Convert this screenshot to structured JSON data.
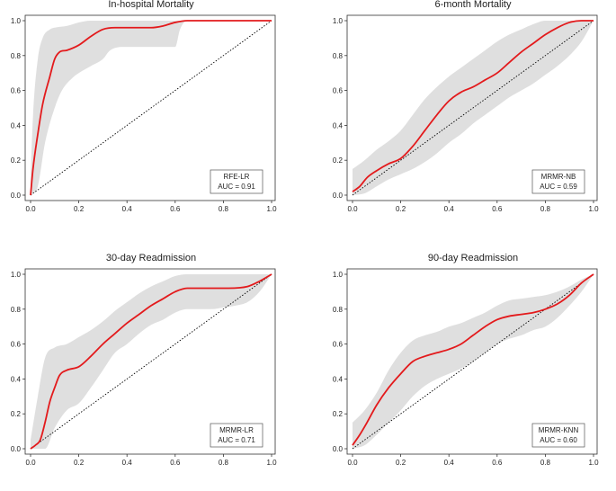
{
  "colors": {
    "curve": "#e31a1c",
    "band": "#d9d9d9",
    "axis": "#333333",
    "diagonal": "#000000"
  },
  "chart_data": [
    {
      "type": "line",
      "title": "In-hospital Mortality",
      "xlim": [
        0,
        1
      ],
      "ylim": [
        0,
        1
      ],
      "xticks": [
        "0.0",
        "0.2",
        "0.4",
        "0.6",
        "0.8",
        "1.0"
      ],
      "yticks": [
        "0.0",
        "0.2",
        "0.4",
        "0.6",
        "0.8",
        "1.0"
      ],
      "legend": {
        "model": "RFE-LR",
        "auc": "AUC = 0.91",
        "position": "lower-right"
      },
      "series": [
        {
          "name": "mean ROC",
          "x": [
            0,
            0.01,
            0.03,
            0.05,
            0.08,
            0.1,
            0.12,
            0.15,
            0.2,
            0.25,
            0.3,
            0.35,
            0.4,
            0.5,
            0.55,
            0.6,
            0.65,
            0.7,
            0.8,
            0.9,
            1.0
          ],
          "y": [
            0,
            0.15,
            0.35,
            0.52,
            0.68,
            0.78,
            0.82,
            0.83,
            0.86,
            0.91,
            0.95,
            0.96,
            0.96,
            0.96,
            0.97,
            0.99,
            1.0,
            1.0,
            1.0,
            1.0,
            1.0
          ]
        },
        {
          "name": "upper band",
          "x": [
            0,
            0.01,
            0.03,
            0.05,
            0.08,
            0.1,
            0.15,
            0.2,
            0.25,
            0.3,
            0.6,
            0.65,
            1.0
          ],
          "y": [
            0.1,
            0.45,
            0.78,
            0.9,
            0.95,
            0.96,
            0.97,
            0.99,
            1.0,
            1.0,
            1.0,
            1.0,
            1.0
          ]
        },
        {
          "name": "lower band",
          "x": [
            0,
            0.03,
            0.06,
            0.1,
            0.13,
            0.18,
            0.2,
            0.25,
            0.3,
            0.33,
            0.4,
            0.6,
            0.62,
            0.65,
            1.0
          ],
          "y": [
            0,
            0.05,
            0.3,
            0.5,
            0.6,
            0.68,
            0.7,
            0.74,
            0.78,
            0.83,
            0.85,
            0.85,
            0.95,
            1.0,
            1.0
          ]
        },
        {
          "name": "chance",
          "x": [
            0,
            1
          ],
          "y": [
            0,
            1
          ]
        }
      ]
    },
    {
      "type": "line",
      "title": "6-month Mortality",
      "xlim": [
        0,
        1
      ],
      "ylim": [
        0,
        1
      ],
      "xticks": [
        "0.0",
        "0.2",
        "0.4",
        "0.6",
        "0.8",
        "1.0"
      ],
      "yticks": [
        "0.0",
        "0.2",
        "0.4",
        "0.6",
        "0.8",
        "1.0"
      ],
      "legend": {
        "model": "MRMR-NB",
        "auc": "AUC = 0.59",
        "position": "lower-right"
      },
      "series": [
        {
          "name": "mean ROC",
          "x": [
            0,
            0.03,
            0.06,
            0.1,
            0.15,
            0.2,
            0.25,
            0.3,
            0.35,
            0.4,
            0.45,
            0.5,
            0.55,
            0.6,
            0.65,
            0.7,
            0.75,
            0.8,
            0.85,
            0.9,
            0.95,
            1.0
          ],
          "y": [
            0.02,
            0.05,
            0.1,
            0.14,
            0.18,
            0.21,
            0.28,
            0.37,
            0.46,
            0.54,
            0.59,
            0.62,
            0.66,
            0.7,
            0.76,
            0.82,
            0.87,
            0.92,
            0.96,
            0.99,
            1.0,
            1.0
          ]
        },
        {
          "name": "upper band",
          "x": [
            0,
            0.05,
            0.1,
            0.15,
            0.2,
            0.25,
            0.3,
            0.35,
            0.4,
            0.45,
            0.5,
            0.55,
            0.6,
            0.65,
            0.7,
            0.75,
            0.8,
            0.85,
            0.9,
            1.0
          ],
          "y": [
            0.15,
            0.2,
            0.26,
            0.31,
            0.37,
            0.46,
            0.55,
            0.62,
            0.68,
            0.73,
            0.78,
            0.83,
            0.88,
            0.92,
            0.95,
            0.98,
            1.0,
            1.0,
            1.0,
            1.0
          ]
        },
        {
          "name": "lower band",
          "x": [
            0,
            0.05,
            0.1,
            0.15,
            0.2,
            0.25,
            0.3,
            0.35,
            0.4,
            0.45,
            0.5,
            0.55,
            0.6,
            0.65,
            0.7,
            0.75,
            0.8,
            0.85,
            0.9,
            0.95,
            1.0
          ],
          "y": [
            0,
            0.01,
            0.05,
            0.09,
            0.12,
            0.15,
            0.19,
            0.24,
            0.3,
            0.35,
            0.41,
            0.46,
            0.51,
            0.56,
            0.6,
            0.64,
            0.69,
            0.74,
            0.8,
            0.88,
            1.0
          ]
        },
        {
          "name": "chance",
          "x": [
            0,
            1
          ],
          "y": [
            0,
            1
          ]
        }
      ]
    },
    {
      "type": "line",
      "title": "30-day Readmission",
      "xlim": [
        0,
        1
      ],
      "ylim": [
        0,
        1
      ],
      "xticks": [
        "0.0",
        "0.2",
        "0.4",
        "0.6",
        "0.8",
        "1.0"
      ],
      "yticks": [
        "0.0",
        "0.2",
        "0.4",
        "0.6",
        "0.8",
        "1.0"
      ],
      "legend": {
        "model": "MRMR-LR",
        "auc": "AUC = 0.71",
        "position": "lower-right"
      },
      "series": [
        {
          "name": "mean ROC",
          "x": [
            0,
            0.02,
            0.04,
            0.06,
            0.08,
            0.1,
            0.12,
            0.15,
            0.2,
            0.25,
            0.3,
            0.35,
            0.4,
            0.45,
            0.5,
            0.55,
            0.6,
            0.65,
            0.7,
            0.8,
            0.9,
            0.95,
            1.0
          ],
          "y": [
            0,
            0.02,
            0.05,
            0.15,
            0.27,
            0.35,
            0.42,
            0.45,
            0.47,
            0.53,
            0.6,
            0.66,
            0.72,
            0.77,
            0.82,
            0.86,
            0.9,
            0.92,
            0.92,
            0.92,
            0.93,
            0.96,
            1.0
          ]
        },
        {
          "name": "upper band",
          "x": [
            0,
            0.03,
            0.06,
            0.1,
            0.15,
            0.2,
            0.25,
            0.3,
            0.35,
            0.4,
            0.45,
            0.5,
            0.55,
            0.6,
            0.65,
            0.7,
            1.0
          ],
          "y": [
            0.05,
            0.3,
            0.52,
            0.58,
            0.6,
            0.64,
            0.68,
            0.73,
            0.79,
            0.84,
            0.89,
            0.93,
            0.96,
            0.99,
            1.0,
            1.0,
            1.0
          ]
        },
        {
          "name": "lower band",
          "x": [
            0,
            0.06,
            0.1,
            0.15,
            0.2,
            0.25,
            0.3,
            0.35,
            0.4,
            0.45,
            0.5,
            0.55,
            0.6,
            0.65,
            0.7,
            0.75,
            0.8,
            0.85,
            0.9,
            0.95,
            1.0
          ],
          "y": [
            0,
            0,
            0.12,
            0.22,
            0.26,
            0.35,
            0.45,
            0.55,
            0.6,
            0.66,
            0.71,
            0.74,
            0.78,
            0.8,
            0.8,
            0.8,
            0.81,
            0.82,
            0.84,
            0.9,
            1.0
          ]
        },
        {
          "name": "chance",
          "x": [
            0,
            1
          ],
          "y": [
            0,
            1
          ]
        }
      ]
    },
    {
      "type": "line",
      "title": "90-day Readmission",
      "xlim": [
        0,
        1
      ],
      "ylim": [
        0,
        1
      ],
      "xticks": [
        "0.0",
        "0.2",
        "0.4",
        "0.6",
        "0.8",
        "1.0"
      ],
      "yticks": [
        "0.0",
        "0.2",
        "0.4",
        "0.6",
        "0.8",
        "1.0"
      ],
      "legend": {
        "model": "MRMR-KNN",
        "auc": "AUC = 0.60",
        "position": "lower-right"
      },
      "series": [
        {
          "name": "mean ROC",
          "x": [
            0,
            0.03,
            0.06,
            0.1,
            0.15,
            0.2,
            0.25,
            0.3,
            0.35,
            0.4,
            0.45,
            0.5,
            0.55,
            0.6,
            0.65,
            0.7,
            0.75,
            0.8,
            0.85,
            0.9,
            0.95,
            1.0
          ],
          "y": [
            0.02,
            0.08,
            0.15,
            0.25,
            0.35,
            0.43,
            0.5,
            0.53,
            0.55,
            0.57,
            0.6,
            0.65,
            0.7,
            0.74,
            0.76,
            0.77,
            0.78,
            0.8,
            0.83,
            0.88,
            0.95,
            1.0
          ]
        },
        {
          "name": "upper band",
          "x": [
            0,
            0.05,
            0.1,
            0.15,
            0.2,
            0.25,
            0.3,
            0.35,
            0.4,
            0.45,
            0.5,
            0.55,
            0.6,
            0.65,
            0.7,
            0.75,
            0.8,
            0.85,
            0.9,
            0.95,
            1.0
          ],
          "y": [
            0.15,
            0.22,
            0.32,
            0.45,
            0.55,
            0.62,
            0.65,
            0.67,
            0.7,
            0.72,
            0.75,
            0.78,
            0.82,
            0.85,
            0.86,
            0.87,
            0.88,
            0.9,
            0.93,
            0.97,
            1.0
          ]
        },
        {
          "name": "lower band",
          "x": [
            0,
            0.05,
            0.1,
            0.15,
            0.2,
            0.25,
            0.3,
            0.35,
            0.4,
            0.45,
            0.5,
            0.55,
            0.6,
            0.65,
            0.7,
            0.75,
            0.8,
            0.85,
            0.9,
            0.95,
            1.0
          ],
          "y": [
            0,
            0.02,
            0.08,
            0.15,
            0.22,
            0.3,
            0.36,
            0.4,
            0.43,
            0.46,
            0.5,
            0.55,
            0.6,
            0.63,
            0.65,
            0.68,
            0.7,
            0.75,
            0.82,
            0.9,
            1.0
          ]
        },
        {
          "name": "chance",
          "x": [
            0,
            1
          ],
          "y": [
            0,
            1
          ]
        }
      ]
    }
  ]
}
